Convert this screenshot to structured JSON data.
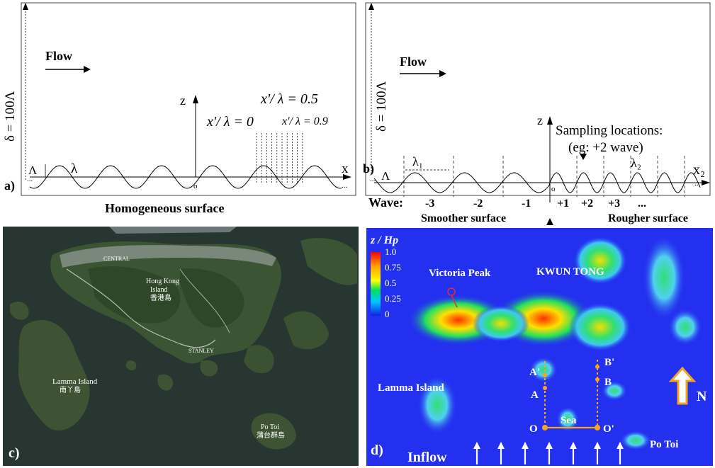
{
  "panel_a": {
    "tag": "a)",
    "flow": "Flow",
    "delta": "δ = 100Λ",
    "z": "z",
    "x": "x",
    "origin": "o",
    "lambda": "λ",
    "amp": "Λ",
    "xl_05": "x'/ λ = 0.5",
    "xl_0": "x'/ λ = 0",
    "xl_09": "x'/ λ = 0.9",
    "caption": "Homogeneous surface",
    "dots": "..."
  },
  "panel_b": {
    "tag": "b)",
    "flow": "Flow",
    "delta": "δ = 100Λ",
    "z": "z",
    "x2": "x₂",
    "origin": "o",
    "lambda1": "λ₁",
    "lambda2": "λ₂",
    "amp": "Λ",
    "sampling1": "Sampling locations:",
    "sampling2": "(eg: +2 wave)",
    "wave_label": "Wave:",
    "waves": [
      "-3",
      "-2",
      "-1",
      "+1",
      "+2",
      "+3",
      "..."
    ],
    "smoother": "Smoother surface",
    "rougher": "Rougher surface",
    "dots": "..."
  },
  "panel_c": {
    "tag": "c)",
    "places": [
      {
        "name": "CENTRAL",
        "sub": ""
      },
      {
        "name": "Hong Kong",
        "sub": "Island"
      },
      {
        "name": "香港島",
        "sub": ""
      },
      {
        "name": "STANLEY",
        "sub": ""
      },
      {
        "name": "Lamma Island",
        "sub": ""
      },
      {
        "name": "南丫島",
        "sub": ""
      },
      {
        "name": "Po Toi",
        "sub": ""
      },
      {
        "name": "蒲台群島",
        "sub": ""
      }
    ]
  },
  "panel_d": {
    "tag": "d)",
    "colorbar_title": "z / Hp",
    "colorbar_ticks": [
      "1.0",
      "0.75",
      "0.5",
      "0.25",
      "0"
    ],
    "victoria": "Victoria Peak",
    "kwun": "KWUN TONG",
    "lamma": "Lamma Island",
    "potoi": "Po Toi",
    "sea": "Sea",
    "north": "N",
    "inflow": "Inflow",
    "points": [
      "A'",
      "A",
      "B'",
      "B",
      "O",
      "O'"
    ]
  },
  "colors": {
    "sea_blue": "#2330f0",
    "dashed_orange": "#f6a51c",
    "arrow_orange": "#f3a31d",
    "victoria_marker": "#e03030"
  }
}
